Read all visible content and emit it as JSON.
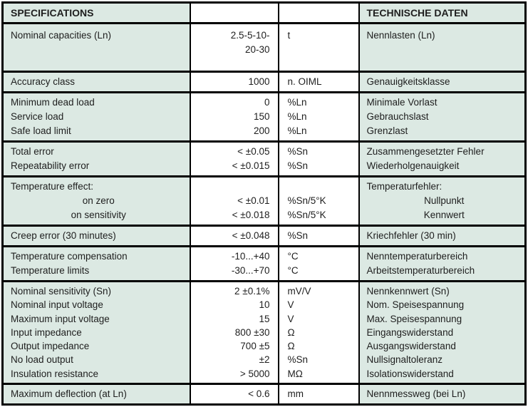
{
  "header": {
    "left": "SPECIFICATIONS",
    "right": "TECHNISCHE DATEN"
  },
  "colors": {
    "row_tint": "#dce9e3",
    "cell_white": "#ffffff",
    "border": "#000000",
    "text": "#1e1e1e"
  },
  "groups": [
    {
      "en": [
        "Nominal capacities (Ln)"
      ],
      "value": [
        "2.5-5-10-",
        "20-30"
      ],
      "unit": [
        "t"
      ],
      "de": [
        "Nennlasten (Ln)"
      ]
    },
    {
      "en": [
        "Accuracy class"
      ],
      "value": [
        "1000"
      ],
      "unit": [
        "n. OIML"
      ],
      "de": [
        "Genauigkeitsklasse"
      ]
    },
    {
      "en": [
        "Minimum dead load",
        "Service load",
        "Safe load limit"
      ],
      "value": [
        "0",
        "150",
        "200"
      ],
      "unit": [
        "%Ln",
        "%Ln",
        "%Ln"
      ],
      "de": [
        "Minimale Vorlast",
        "Gebrauchslast",
        "Grenzlast"
      ]
    },
    {
      "en": [
        "Total error",
        "Repeatability error"
      ],
      "value": [
        "< ±0.05",
        "< ±0.015"
      ],
      "unit": [
        "%Sn",
        "%Sn"
      ],
      "de": [
        "Zusammengesetzter Fehler",
        "Wiederholgenauigkeit"
      ]
    },
    {
      "en": [
        "Temperature effect:",
        "on zero",
        "on sensitivity"
      ],
      "value": [
        "",
        "< ±0.01",
        "< ±0.018"
      ],
      "unit": [
        "",
        "%Sn/5°K",
        "%Sn/5°K"
      ],
      "de": [
        "Temperaturfehler:",
        "Nullpunkt",
        "Kennwert"
      ]
    },
    {
      "en": [
        "Creep error (30 minutes)"
      ],
      "value": [
        "< ±0.048"
      ],
      "unit": [
        "%Sn"
      ],
      "de": [
        "Kriechfehler (30 min)"
      ]
    },
    {
      "en": [
        "Temperature compensation",
        "Temperature limits"
      ],
      "value": [
        "-10...+40",
        "-30...+70"
      ],
      "unit": [
        "°C",
        "°C"
      ],
      "de": [
        "Nenntemperaturbereich",
        "Arbeitstemperaturbereich"
      ]
    },
    {
      "en": [
        "Nominal sensitivity (Sn)",
        "Nominal input voltage",
        "Maximum input voltage",
        "Input impedance",
        "Output impedance",
        "No load output",
        "Insulation resistance"
      ],
      "value": [
        "2 ±0.1%",
        "10",
        "15",
        "800 ±30",
        "700 ±5",
        "±2",
        "> 5000"
      ],
      "unit": [
        "mV/V",
        "V",
        "V",
        "Ω",
        "Ω",
        "%Sn",
        "MΩ"
      ],
      "de": [
        "Nennkennwert (Sn)",
        "Nom. Speisespannung",
        "Max. Speisespannung",
        "Eingangswiderstand",
        "Ausgangswiderstand",
        "Nullsignaltoleranz",
        "Isolationswiderstand"
      ]
    },
    {
      "en": [
        "Maximum deflection (at Ln)"
      ],
      "value": [
        "< 0.6"
      ],
      "unit": [
        "mm"
      ],
      "de": [
        "Nennmessweg (bei Ln)"
      ]
    }
  ]
}
